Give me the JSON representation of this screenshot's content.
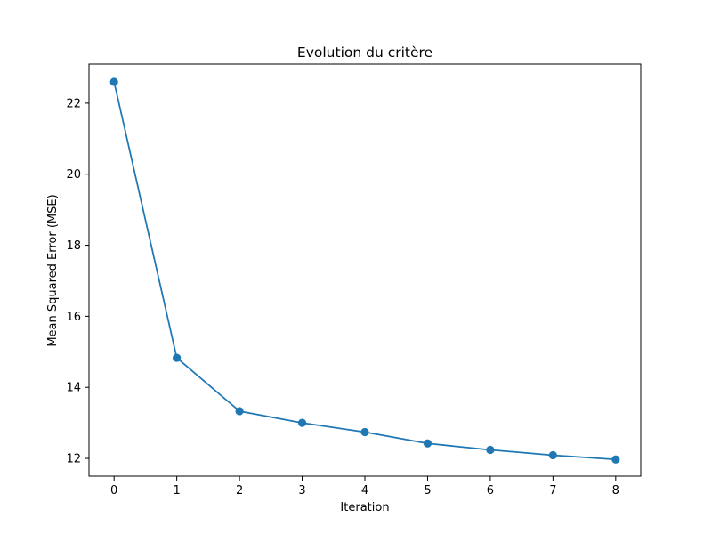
{
  "chart_data": {
    "type": "line",
    "title": "Evolution du critère",
    "xlabel": "Iteration",
    "ylabel": "Mean Squared Error (MSE)",
    "x": [
      0,
      1,
      2,
      3,
      4,
      5,
      6,
      7,
      8
    ],
    "series": [
      {
        "values": [
          22.6,
          14.83,
          13.33,
          13.0,
          12.74,
          12.42,
          12.24,
          12.09,
          11.97
        ],
        "color": "#1f77b4",
        "marker": "circle"
      }
    ],
    "xlim": [
      -0.4,
      8.4
    ],
    "ylim": [
      11.5,
      23.1
    ],
    "xticks": [
      0,
      1,
      2,
      3,
      4,
      5,
      6,
      7,
      8
    ],
    "yticks": [
      12,
      14,
      16,
      18,
      20,
      22
    ],
    "grid": false,
    "legend": "none"
  }
}
